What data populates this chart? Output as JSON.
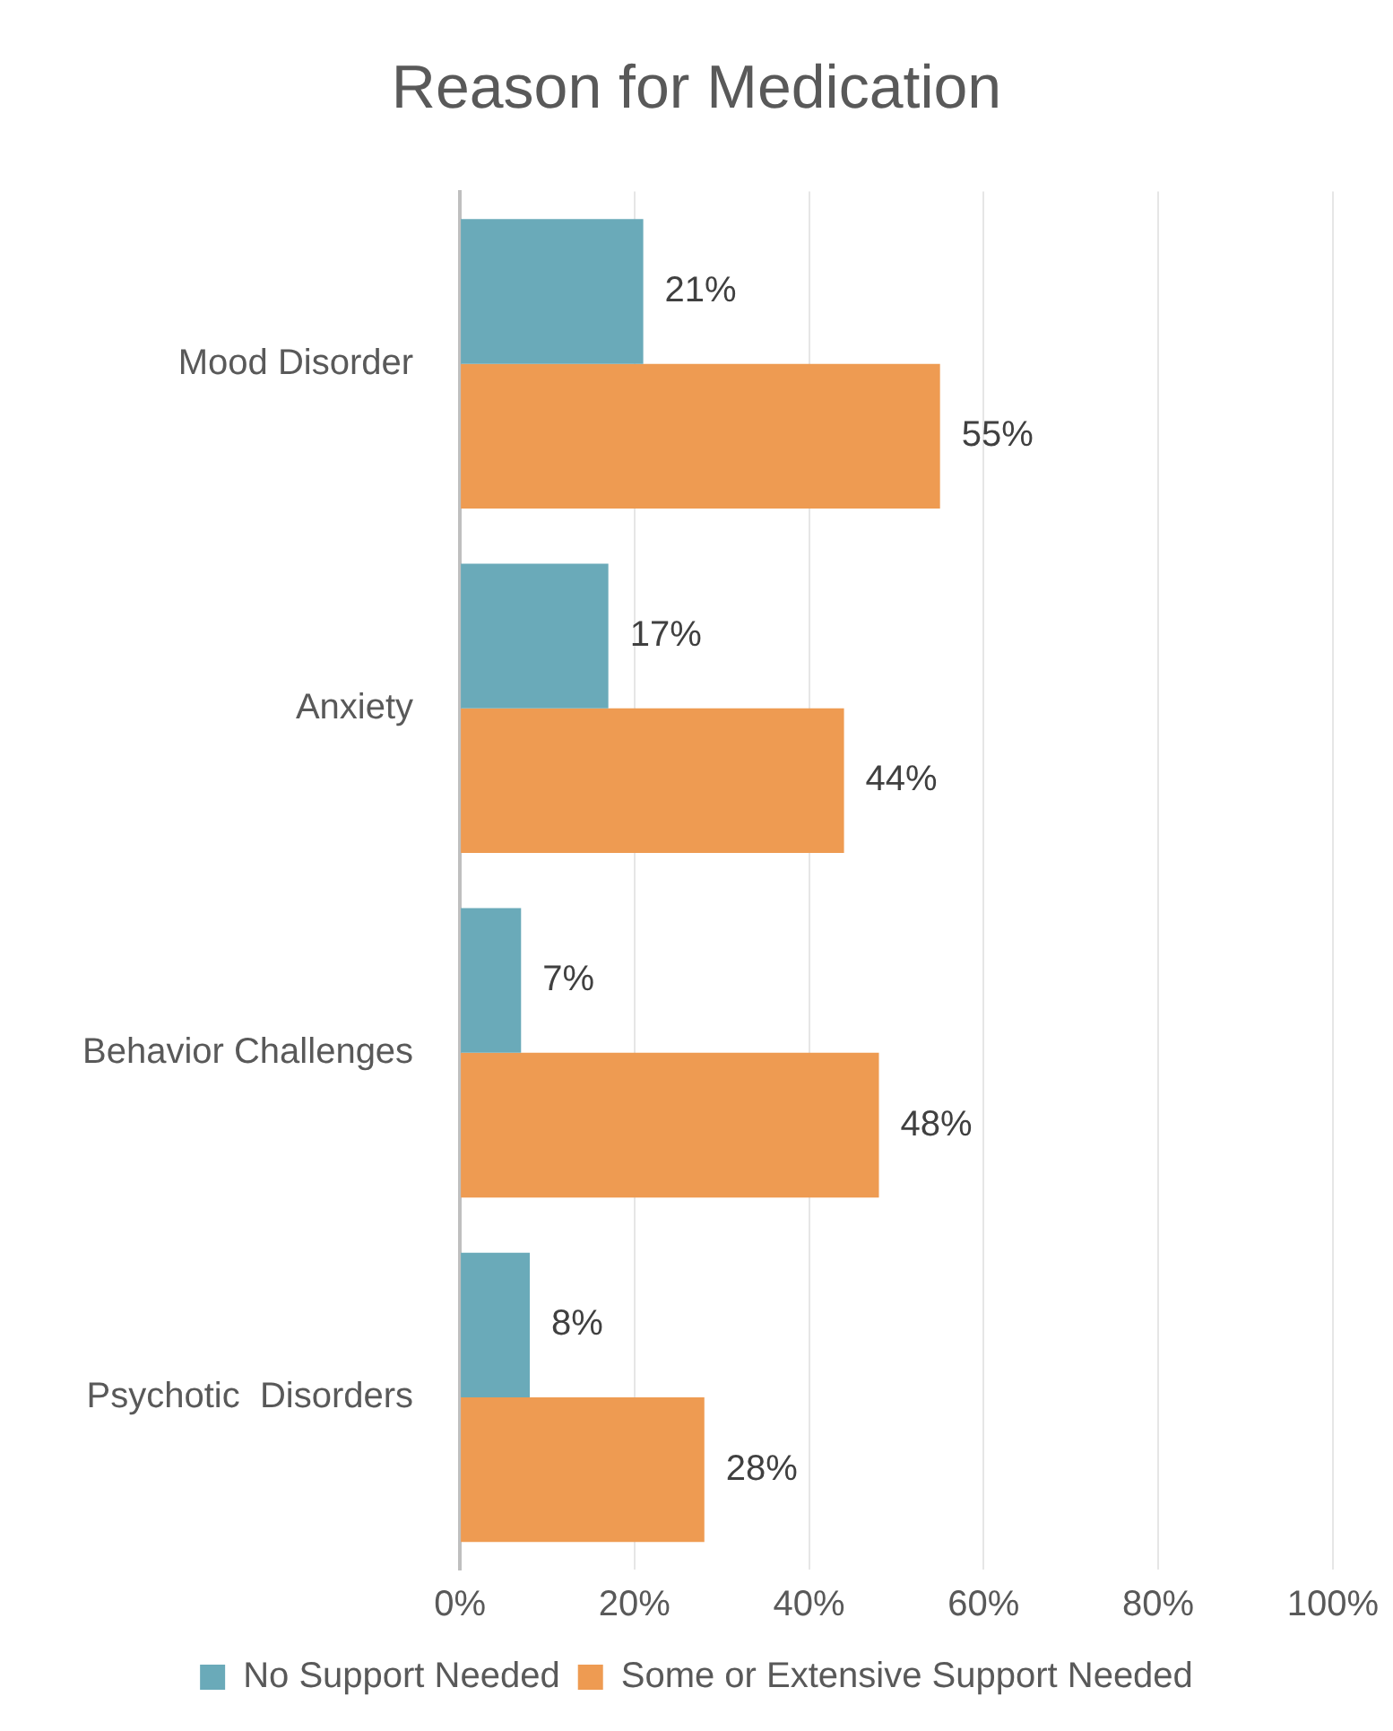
{
  "chart_data": {
    "type": "bar",
    "orientation": "horizontal",
    "title": "Reason for Medication",
    "categories": [
      "Mood Disorder",
      "Anxiety",
      "Behavior Challenges",
      "Psychotic  Disorders"
    ],
    "series": [
      {
        "name": "No Support Needed",
        "color": "#6aaab9",
        "values": [
          21,
          17,
          7,
          8
        ],
        "value_labels": [
          "21%",
          "17%",
          "7%",
          "8%"
        ]
      },
      {
        "name": "Some or Extensive Support Needed",
        "color": "#ee9b52",
        "values": [
          55,
          44,
          48,
          28
        ],
        "value_labels": [
          "55%",
          "44%",
          "48%",
          "28%"
        ]
      }
    ],
    "xlim": [
      0,
      100
    ],
    "xticks": [
      {
        "value": 0,
        "label": "0%"
      },
      {
        "value": 20,
        "label": "20%"
      },
      {
        "value": 40,
        "label": "40%"
      },
      {
        "value": 60,
        "label": "60%"
      },
      {
        "value": 80,
        "label": "80%"
      },
      {
        "value": 100,
        "label": "100%"
      }
    ],
    "grid": "x",
    "legend": "bottom"
  }
}
